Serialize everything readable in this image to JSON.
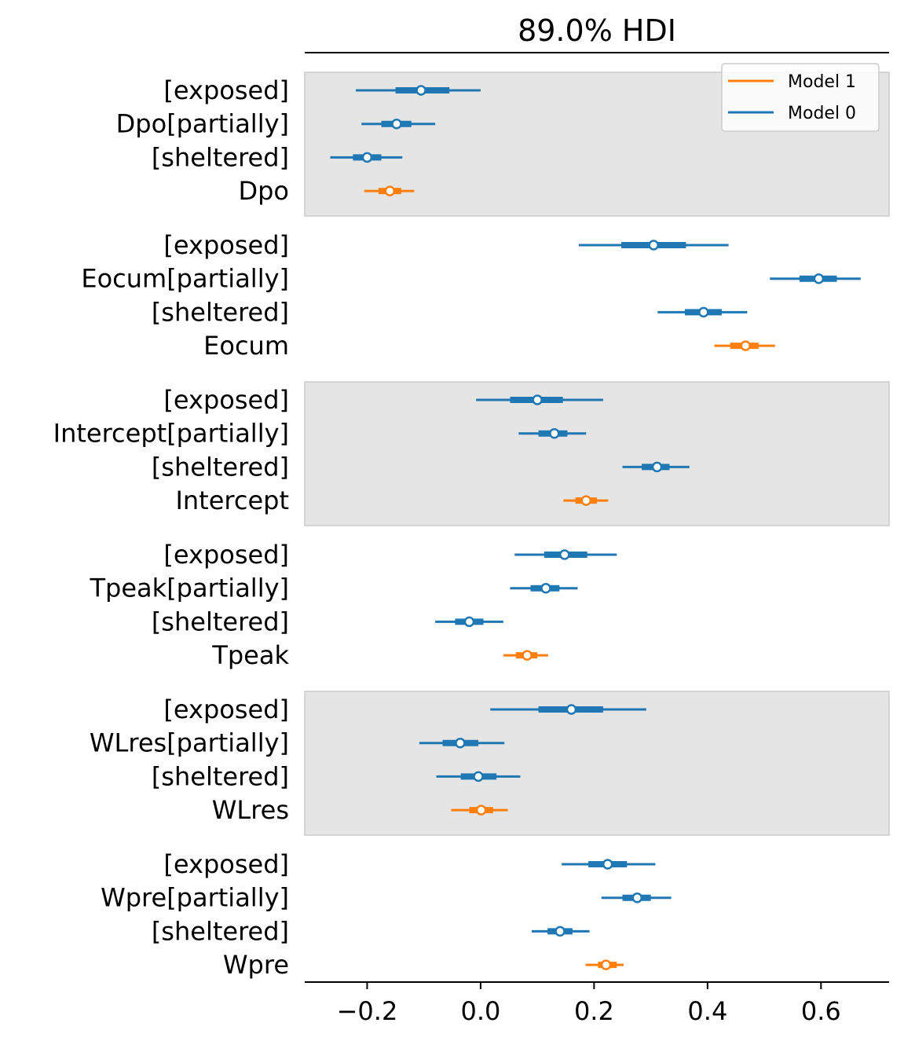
{
  "chart_data": {
    "type": "forest",
    "title": "89.0% HDI",
    "xlim": [
      -0.31,
      0.72
    ],
    "xticks": [
      -0.2,
      0.0,
      0.2,
      0.4,
      0.6
    ],
    "xtick_labels": [
      "−0.2",
      "0.0",
      "0.2",
      "0.4",
      "0.6"
    ],
    "legend": {
      "placement": "top-right",
      "entries": [
        {
          "name": "Model 1",
          "color": "#ff7f0e"
        },
        {
          "name": "Model 0",
          "color": "#1f77b4"
        }
      ]
    },
    "groups": [
      {
        "shaded": true,
        "rows": [
          {
            "label": "[exposed]",
            "model": 0,
            "hdi": [
              -0.22,
              0.0
            ],
            "iqr": [
              -0.15,
              -0.055
            ],
            "median": -0.105
          },
          {
            "label": "Dpo[partially]",
            "model": 0,
            "hdi": [
              -0.21,
              -0.08
            ],
            "iqr": [
              -0.175,
              -0.122
            ],
            "median": -0.148
          },
          {
            "label": "[sheltered]",
            "model": 0,
            "hdi": [
              -0.265,
              -0.138
            ],
            "iqr": [
              -0.225,
              -0.175
            ],
            "median": -0.2
          },
          {
            "label": "Dpo",
            "model": 1,
            "hdi": [
              -0.205,
              -0.117
            ],
            "iqr": [
              -0.18,
              -0.14
            ],
            "median": -0.16
          }
        ]
      },
      {
        "shaded": false,
        "rows": [
          {
            "label": "[exposed]",
            "model": 0,
            "hdi": [
              0.173,
              0.437
            ],
            "iqr": [
              0.248,
              0.362
            ],
            "median": 0.305
          },
          {
            "label": "Eocum[partially]",
            "model": 0,
            "hdi": [
              0.51,
              0.67
            ],
            "iqr": [
              0.562,
              0.628
            ],
            "median": 0.596
          },
          {
            "label": "[sheltered]",
            "model": 0,
            "hdi": [
              0.312,
              0.47
            ],
            "iqr": [
              0.36,
              0.425
            ],
            "median": 0.393
          },
          {
            "label": "Eocum",
            "model": 1,
            "hdi": [
              0.412,
              0.519
            ],
            "iqr": [
              0.44,
              0.49
            ],
            "median": 0.467
          }
        ]
      },
      {
        "shaded": true,
        "rows": [
          {
            "label": "[exposed]",
            "model": 0,
            "hdi": [
              -0.008,
              0.216
            ],
            "iqr": [
              0.052,
              0.145
            ],
            "median": 0.1
          },
          {
            "label": "Intercept[partially]",
            "model": 0,
            "hdi": [
              0.067,
              0.186
            ],
            "iqr": [
              0.102,
              0.153
            ],
            "median": 0.13
          },
          {
            "label": "[sheltered]",
            "model": 0,
            "hdi": [
              0.25,
              0.368
            ],
            "iqr": [
              0.284,
              0.333
            ],
            "median": 0.311
          },
          {
            "label": "Intercept",
            "model": 1,
            "hdi": [
              0.146,
              0.225
            ],
            "iqr": [
              0.167,
              0.205
            ],
            "median": 0.186
          }
        ]
      },
      {
        "shaded": false,
        "rows": [
          {
            "label": "[exposed]",
            "model": 0,
            "hdi": [
              0.06,
              0.24
            ],
            "iqr": [
              0.112,
              0.188
            ],
            "median": 0.148
          },
          {
            "label": "Tpeak[partially]",
            "model": 0,
            "hdi": [
              0.052,
              0.171
            ],
            "iqr": [
              0.088,
              0.139
            ],
            "median": 0.115
          },
          {
            "label": "[sheltered]",
            "model": 0,
            "hdi": [
              -0.08,
              0.04
            ],
            "iqr": [
              -0.045,
              0.005
            ],
            "median": -0.02
          },
          {
            "label": "Tpeak",
            "model": 1,
            "hdi": [
              0.04,
              0.119
            ],
            "iqr": [
              0.062,
              0.1
            ],
            "median": 0.082
          }
        ]
      },
      {
        "shaded": true,
        "rows": [
          {
            "label": "[exposed]",
            "model": 0,
            "hdi": [
              0.017,
              0.292
            ],
            "iqr": [
              0.102,
              0.216
            ],
            "median": 0.16
          },
          {
            "label": "WLres[partially]",
            "model": 0,
            "hdi": [
              -0.108,
              0.042
            ],
            "iqr": [
              -0.067,
              -0.004
            ],
            "median": -0.036
          },
          {
            "label": "[sheltered]",
            "model": 0,
            "hdi": [
              -0.078,
              0.07
            ],
            "iqr": [
              -0.035,
              0.028
            ],
            "median": -0.004
          },
          {
            "label": "WLres",
            "model": 1,
            "hdi": [
              -0.052,
              0.048
            ],
            "iqr": [
              -0.02,
              0.022
            ],
            "median": 0.001
          }
        ]
      },
      {
        "shaded": false,
        "rows": [
          {
            "label": "[exposed]",
            "model": 0,
            "hdi": [
              0.143,
              0.308
            ],
            "iqr": [
              0.19,
              0.258
            ],
            "median": 0.224
          },
          {
            "label": "Wpre[partially]",
            "model": 0,
            "hdi": [
              0.213,
              0.336
            ],
            "iqr": [
              0.25,
              0.3
            ],
            "median": 0.276
          },
          {
            "label": "[sheltered]",
            "model": 0,
            "hdi": [
              0.09,
              0.192
            ],
            "iqr": [
              0.118,
              0.162
            ],
            "median": 0.14
          },
          {
            "label": "Wpre",
            "model": 1,
            "hdi": [
              0.185,
              0.252
            ],
            "iqr": [
              0.207,
              0.24
            ],
            "median": 0.221
          }
        ]
      }
    ]
  }
}
